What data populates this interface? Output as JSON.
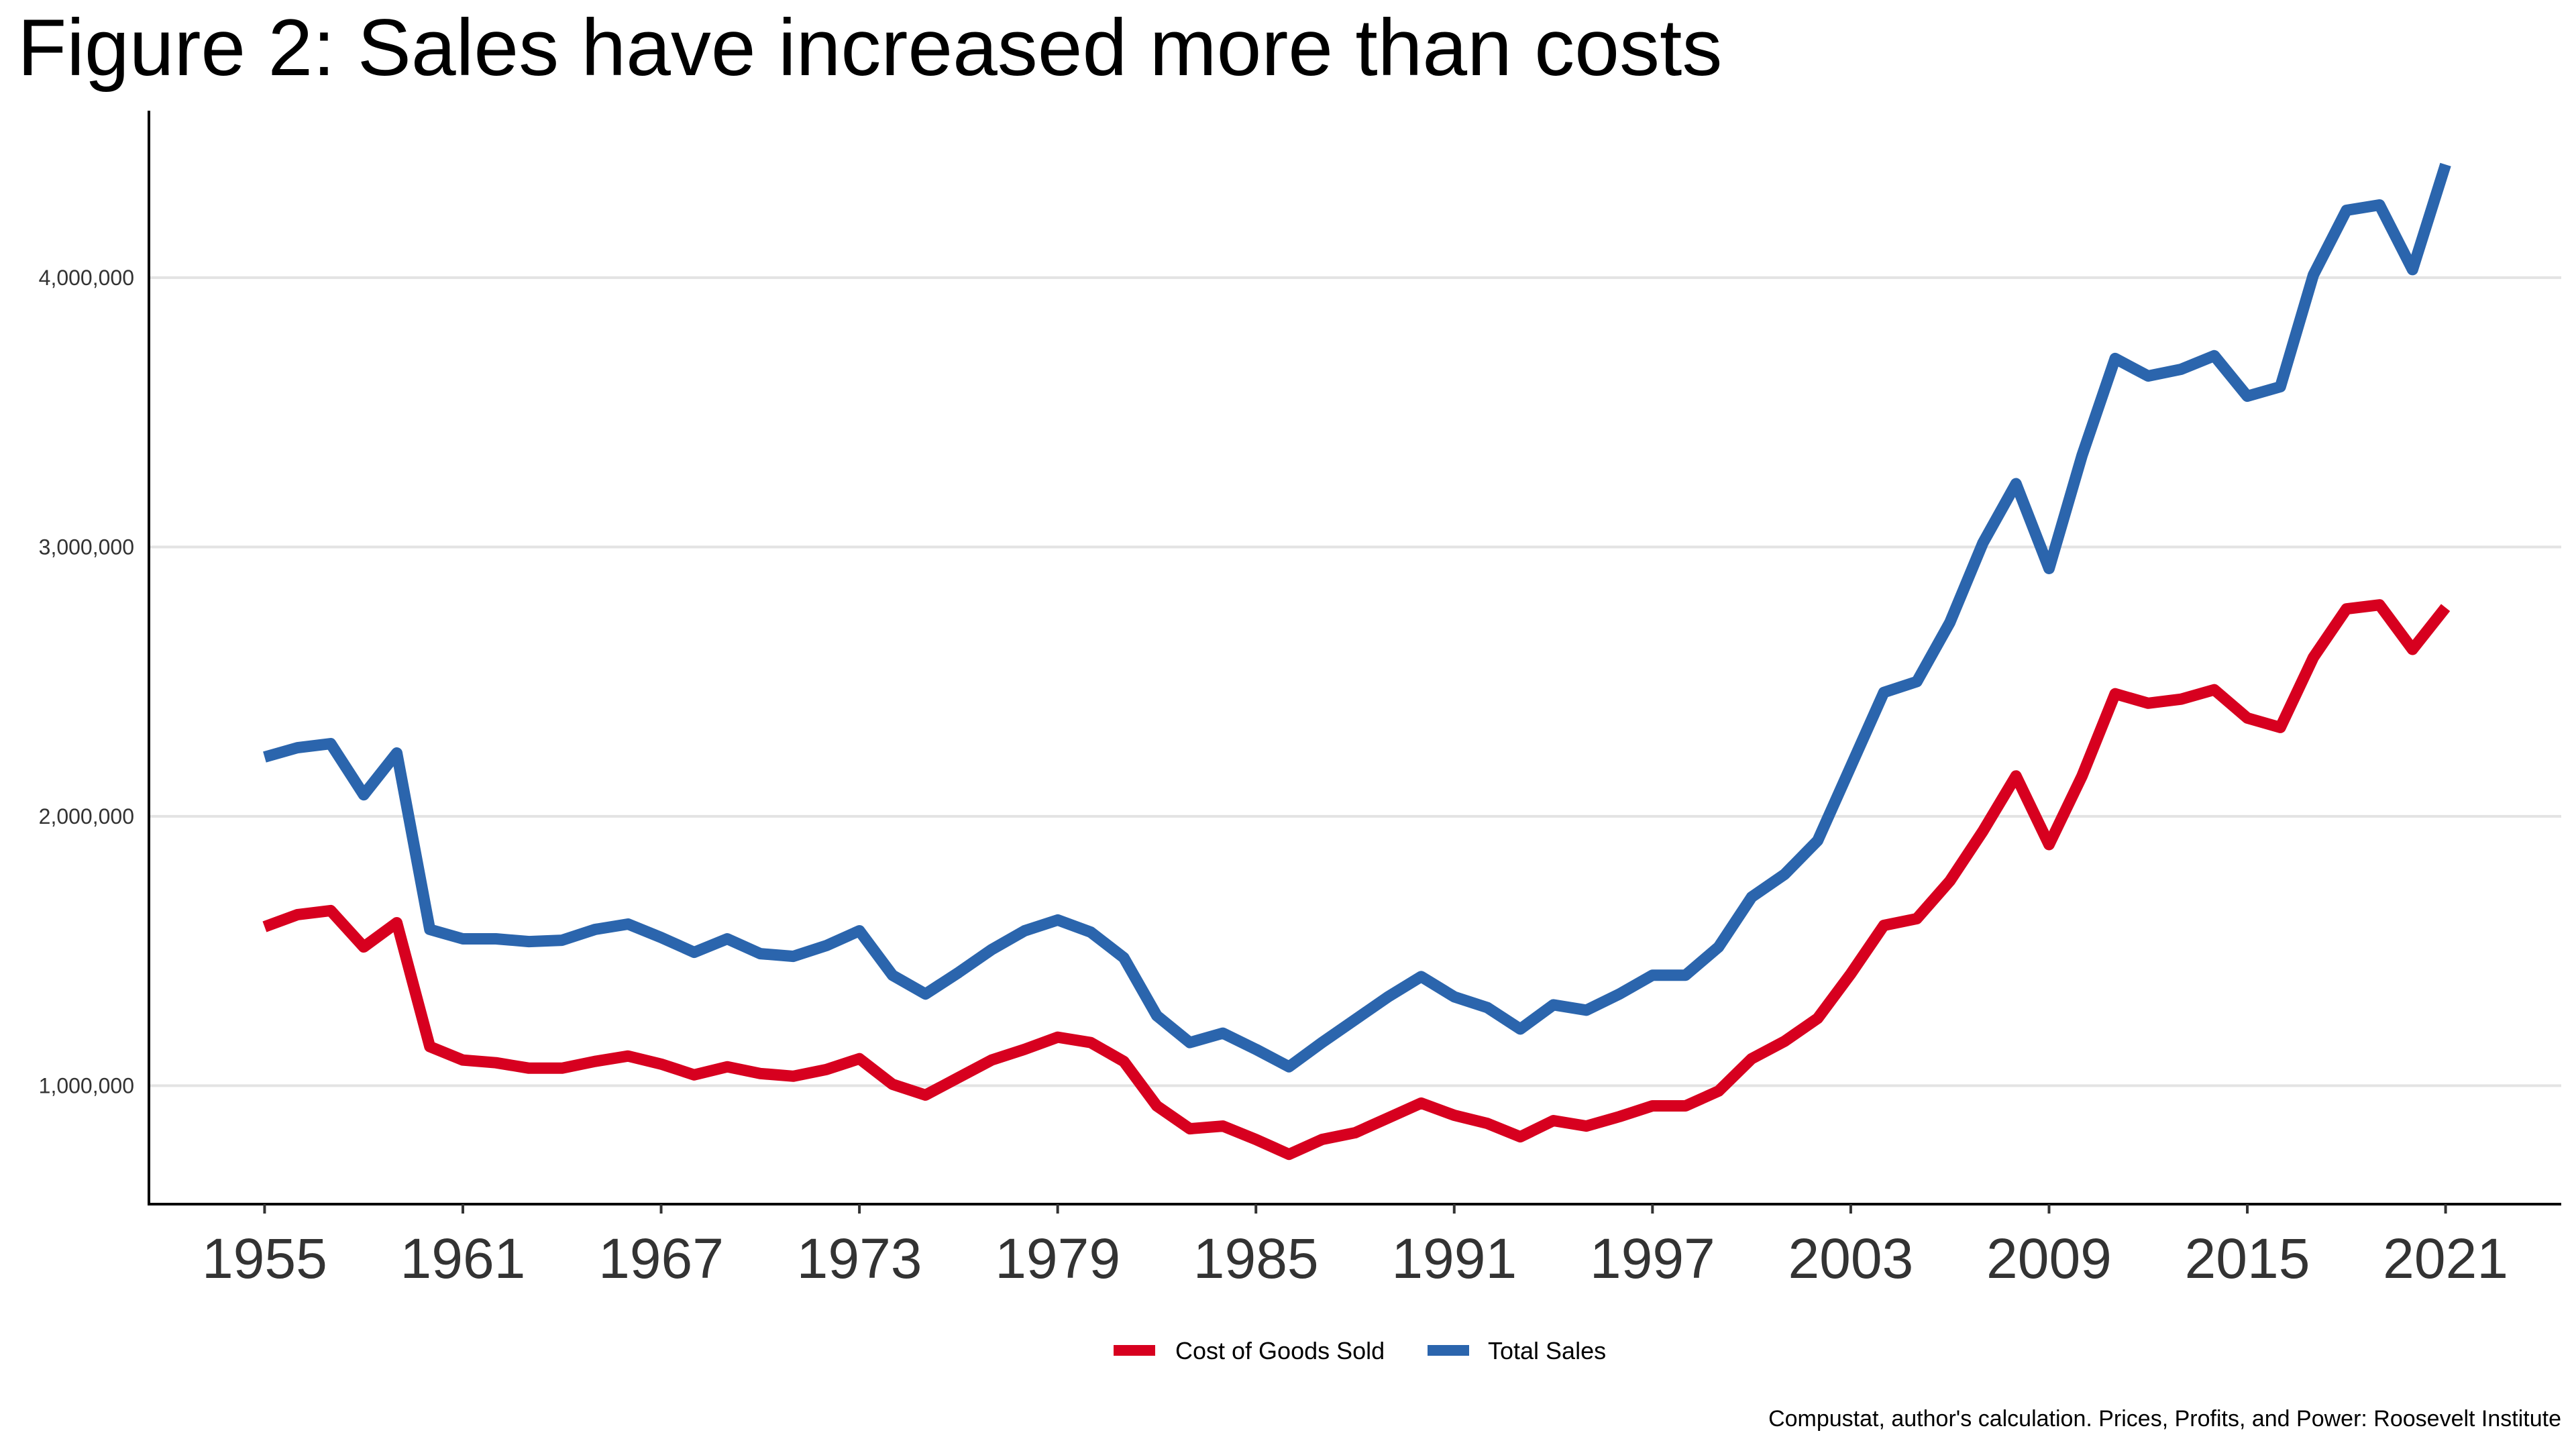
{
  "chart_data": {
    "type": "line",
    "title": "Figure 2: Sales have increased more than costs",
    "caption": "Compustat, author's calculation. Prices, Profits, and Power: Roosevelt Institute",
    "xlabel": "",
    "ylabel": "",
    "xlim": [
      1951.5,
      2024.5
    ],
    "ylim": [
      560000,
      4620000
    ],
    "grid": "horizontal",
    "legend_position": "bottom",
    "x_ticks": [
      1955,
      1961,
      1967,
      1973,
      1979,
      1985,
      1991,
      1997,
      2003,
      2009,
      2015,
      2021
    ],
    "y_ticks": [
      1000000,
      2000000,
      3000000,
      4000000
    ],
    "y_tick_labels": [
      "1,000,000",
      "2,000,000",
      "3,000,000",
      "4,000,000"
    ],
    "x": [
      1955,
      1956,
      1957,
      1958,
      1959,
      1960,
      1961,
      1962,
      1963,
      1964,
      1965,
      1966,
      1967,
      1968,
      1969,
      1970,
      1971,
      1972,
      1973,
      1974,
      1975,
      1976,
      1977,
      1978,
      1979,
      1980,
      1981,
      1982,
      1983,
      1984,
      1985,
      1986,
      1987,
      1988,
      1989,
      1990,
      1991,
      1992,
      1993,
      1994,
      1995,
      1996,
      1997,
      1998,
      1999,
      2000,
      2001,
      2002,
      2003,
      2004,
      2005,
      2006,
      2007,
      2008,
      2009,
      2010,
      2011,
      2012,
      2013,
      2014,
      2015,
      2016,
      2017,
      2018,
      2019,
      2020,
      2021
    ],
    "series": [
      {
        "name": "Cost of Goods Sold",
        "color": "#d7001f",
        "values": [
          1590000,
          1635000,
          1650000,
          1515000,
          1605000,
          1145000,
          1095000,
          1085000,
          1065000,
          1065000,
          1090000,
          1110000,
          1080000,
          1040000,
          1070000,
          1045000,
          1035000,
          1060000,
          1100000,
          1005000,
          965000,
          1030000,
          1095000,
          1135000,
          1180000,
          1160000,
          1090000,
          925000,
          840000,
          850000,
          800000,
          745000,
          800000,
          825000,
          880000,
          935000,
          890000,
          860000,
          810000,
          870000,
          850000,
          885000,
          925000,
          925000,
          980000,
          1100000,
          1165000,
          1250000,
          1415000,
          1595000,
          1620000,
          1760000,
          1945000,
          2150000,
          1895000,
          2150000,
          2455000,
          2420000,
          2435000,
          2470000,
          2365000,
          2330000,
          2590000,
          2770000,
          2785000,
          2620000,
          2775000
        ]
      },
      {
        "name": "Total Sales",
        "color": "#2b65ad",
        "values": [
          2220000,
          2255000,
          2270000,
          2080000,
          2235000,
          1580000,
          1545000,
          1545000,
          1535000,
          1540000,
          1580000,
          1600000,
          1550000,
          1495000,
          1545000,
          1490000,
          1480000,
          1520000,
          1575000,
          1410000,
          1340000,
          1420000,
          1505000,
          1575000,
          1615000,
          1570000,
          1475000,
          1260000,
          1160000,
          1195000,
          1135000,
          1070000,
          1160000,
          1245000,
          1330000,
          1405000,
          1330000,
          1290000,
          1210000,
          1300000,
          1280000,
          1340000,
          1410000,
          1410000,
          1515000,
          1700000,
          1785000,
          1910000,
          2185000,
          2460000,
          2500000,
          2720000,
          3015000,
          3235000,
          2920000,
          3340000,
          3700000,
          3635000,
          3660000,
          3710000,
          3560000,
          3595000,
          4010000,
          4250000,
          4270000,
          4030000,
          4420000
        ]
      }
    ]
  }
}
